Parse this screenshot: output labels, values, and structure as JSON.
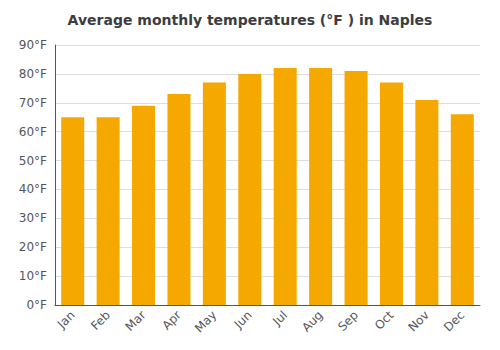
{
  "chart_data": {
    "type": "bar",
    "title": "Average monthly temperatures (°F ) in Naples",
    "categories": [
      "Jan",
      "Feb",
      "Mar",
      "Apr",
      "May",
      "Jun",
      "Jul",
      "Aug",
      "Sep",
      "Oct",
      "Nov",
      "Dec"
    ],
    "values": [
      65,
      65,
      69,
      73,
      77,
      80,
      82,
      82,
      81,
      77,
      71,
      66
    ],
    "color": "#F5A800",
    "ylim": [
      0,
      90
    ],
    "yticks": [
      {
        "value": 0,
        "label": "0°F"
      },
      {
        "value": 10,
        "label": "10°F"
      },
      {
        "value": 20,
        "label": "20°F"
      },
      {
        "value": 30,
        "label": "30°F"
      },
      {
        "value": 40,
        "label": "40°F"
      },
      {
        "value": 50,
        "label": "50°F"
      },
      {
        "value": 60,
        "label": "60°F"
      },
      {
        "value": 70,
        "label": "70°F"
      },
      {
        "value": 80,
        "label": "80°F"
      },
      {
        "value": 90,
        "label": "90°F"
      }
    ],
    "grid": true
  }
}
